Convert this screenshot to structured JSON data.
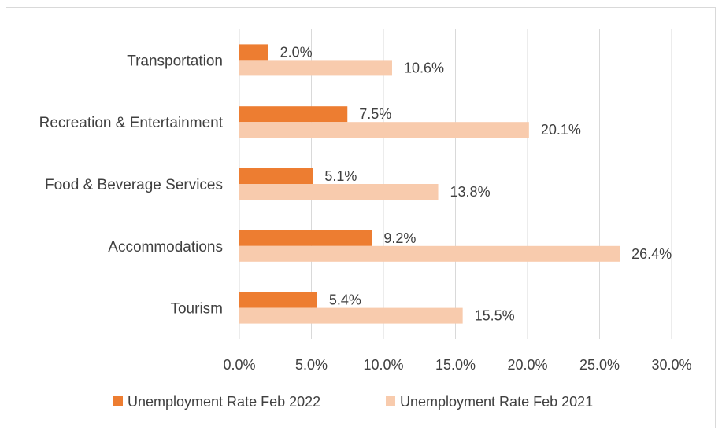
{
  "chart_data": {
    "type": "bar",
    "orientation": "horizontal",
    "categories": [
      "Tourism",
      "Accommodations",
      "Food & Beverage Services",
      "Recreation & Entertainment",
      "Transportation"
    ],
    "series": [
      {
        "name": "Unemployment Rate Feb 2022",
        "color": "#ED7D31",
        "values": [
          5.4,
          9.2,
          5.1,
          7.5,
          2.0
        ],
        "labels": [
          "5.4%",
          "9.2%",
          "5.1%",
          "7.5%",
          "2.0%"
        ]
      },
      {
        "name": "Unemployment Rate Feb 2021",
        "color": "#F8CBAD",
        "values": [
          15.5,
          26.4,
          13.8,
          20.1,
          10.6
        ],
        "labels": [
          "15.5%",
          "26.4%",
          "13.8%",
          "20.1%",
          "10.6%"
        ]
      }
    ],
    "xlim": [
      0,
      30
    ],
    "x_ticks": [
      0,
      5,
      10,
      15,
      20,
      25,
      30
    ],
    "x_tick_labels": [
      "0.0%",
      "5.0%",
      "10.0%",
      "15.0%",
      "20.0%",
      "25.0%",
      "30.0%"
    ],
    "grid": "vertical",
    "legend_position": "bottom",
    "title": "",
    "xlabel": "",
    "ylabel": ""
  }
}
